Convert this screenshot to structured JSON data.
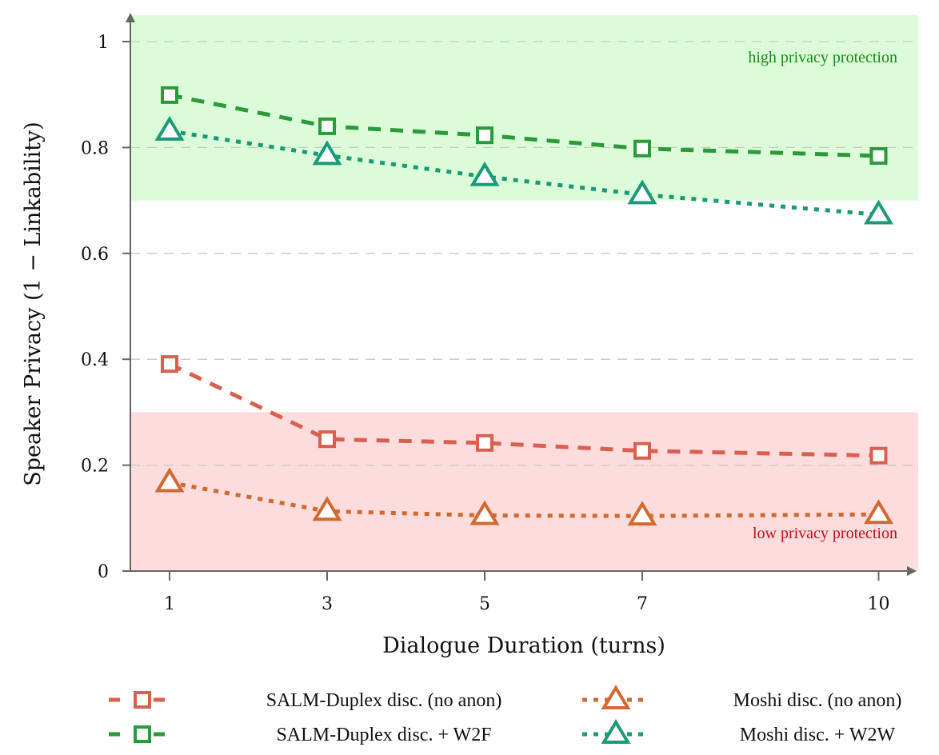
{
  "chart_data": {
    "type": "line",
    "xlabel": "Dialogue Duration (turns)",
    "ylabel": "Speaker Privacy (1 − Linkability)",
    "x": [
      1,
      3,
      5,
      7,
      10
    ],
    "x_ticks": [
      "1",
      "3",
      "5",
      "7",
      "10"
    ],
    "y_ticks": [
      "0",
      "0.2",
      "0.4",
      "0.6",
      "0.8",
      "1"
    ],
    "ylim": [
      0,
      1.05
    ],
    "xlim": [
      0.25,
      10.25
    ],
    "grid": "horizontal dashed",
    "legend_position": "bottom",
    "regions": [
      {
        "label": "high privacy protection",
        "from": 0.7,
        "to": 1.05,
        "color": "#dcfcd9",
        "text_color": "#1a8a1a"
      },
      {
        "label": "low privacy protection",
        "from": 0,
        "to": 0.3,
        "color": "#fcdcdc",
        "text_color": "#c0101a"
      }
    ],
    "series": [
      {
        "name": "SALM-Duplex disc. (no anon)",
        "values": [
          0.391,
          0.249,
          0.242,
          0.227,
          0.218
        ],
        "color": "#d9604f",
        "marker": "square",
        "dash": "dashed"
      },
      {
        "name": "Moshi disc. (no anon)",
        "values": [
          0.167,
          0.113,
          0.105,
          0.104,
          0.107
        ],
        "color": "#d2692f",
        "marker": "triangle",
        "dash": "dotted"
      },
      {
        "name": "SALM-Duplex disc. + W2F",
        "values": [
          0.899,
          0.84,
          0.823,
          0.798,
          0.784
        ],
        "color": "#2a9a3a",
        "marker": "square",
        "dash": "dashed"
      },
      {
        "name": "Moshi disc. + W2W",
        "values": [
          0.831,
          0.785,
          0.745,
          0.711,
          0.673
        ],
        "color": "#1a9a78",
        "marker": "triangle",
        "dash": "dotted"
      }
    ]
  }
}
